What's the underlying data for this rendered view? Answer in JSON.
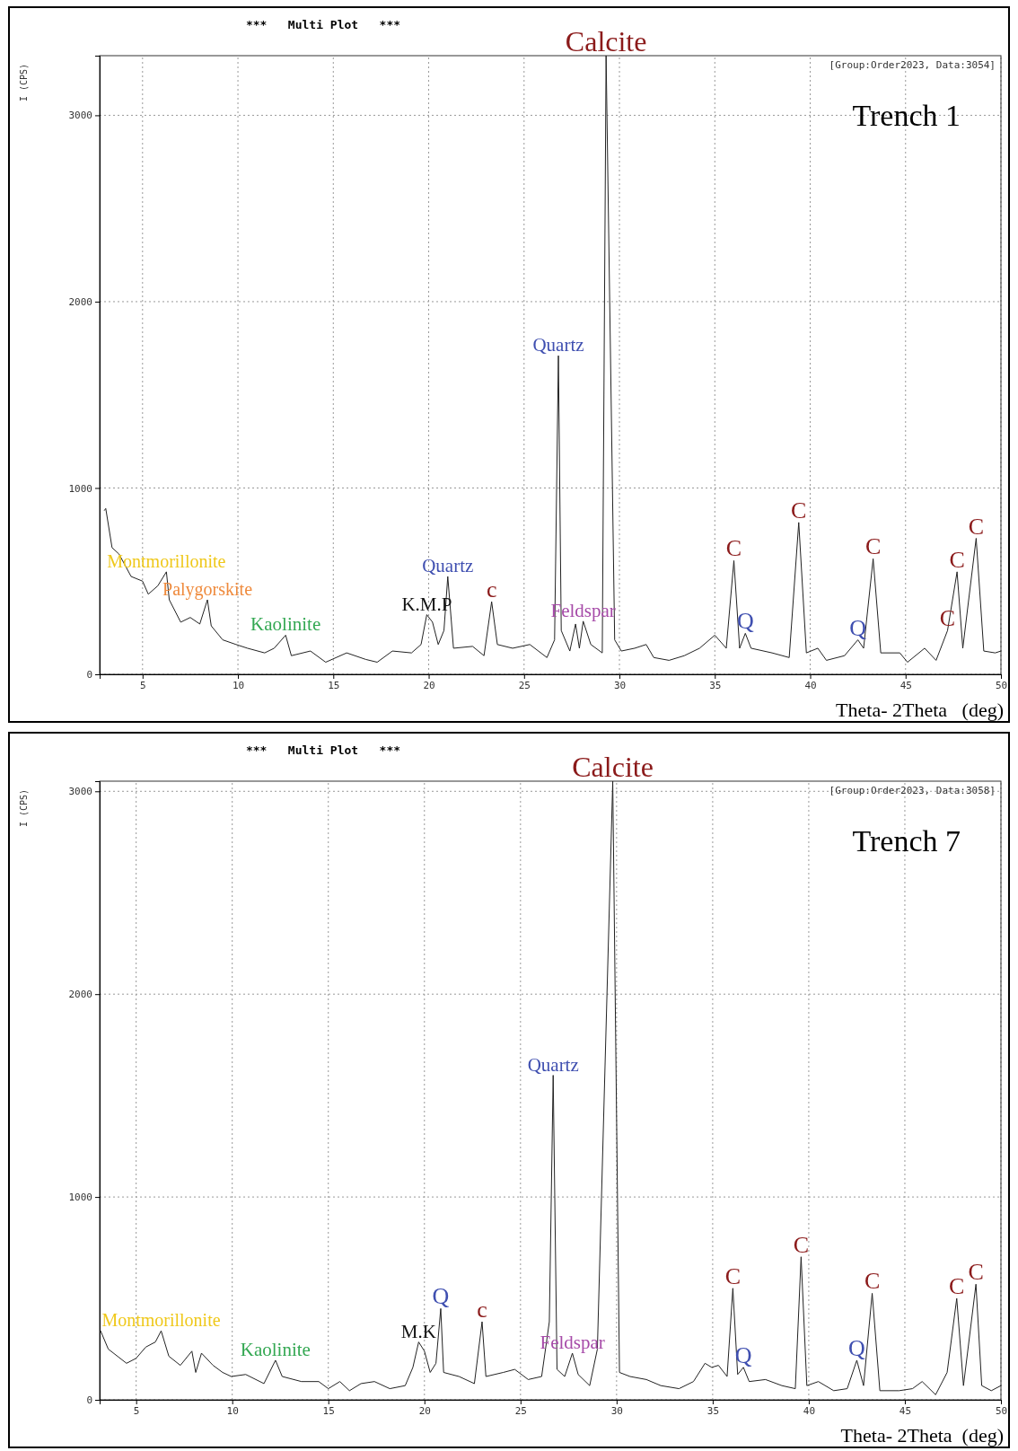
{
  "chart_data": [
    {
      "type": "line",
      "title": "***   Multi Plot   ***",
      "xlabel": "Theta- 2Theta   (deg)",
      "ylabel": "I (CPS)",
      "xlim": [
        2.75,
        50
      ],
      "ylim": [
        0,
        3320
      ],
      "xticks": [
        5,
        10,
        15,
        20,
        25,
        30,
        35,
        40,
        45,
        50
      ],
      "yticks": [
        0,
        1000,
        2000,
        3000
      ],
      "grid": true,
      "color": "#222222",
      "x": [
        3.0,
        3.07,
        3.4,
        3.77,
        4.4,
        5.0,
        5.3,
        5.8,
        6.25,
        6.4,
        7.0,
        7.5,
        8.0,
        8.4,
        8.6,
        9.2,
        9.9,
        10.5,
        11.4,
        11.9,
        12.5,
        12.8,
        13.8,
        14.6,
        15.7,
        16.7,
        17.3,
        18.1,
        19.1,
        19.6,
        19.9,
        20.2,
        20.5,
        20.8,
        21.0,
        21.3,
        22.3,
        22.9,
        23.3,
        23.6,
        24.4,
        25.3,
        26.2,
        26.6,
        26.8,
        26.95,
        27.4,
        27.7,
        27.9,
        28.1,
        28.5,
        29.1,
        29.3,
        29.75,
        30.1,
        30.8,
        31.4,
        31.8,
        32.6,
        33.4,
        34.2,
        35.0,
        35.6,
        36.0,
        36.3,
        36.6,
        36.9,
        38.0,
        38.9,
        39.4,
        39.8,
        40.4,
        40.85,
        41.8,
        42.5,
        42.8,
        43.3,
        43.7,
        44.7,
        45.1,
        46.0,
        46.6,
        47.2,
        47.7,
        48.0,
        48.7,
        49.1,
        49.7,
        50
      ],
      "values": [
        880,
        890,
        680,
        645,
        525,
        500,
        430,
        475,
        550,
        400,
        280,
        305,
        270,
        400,
        260,
        185,
        160,
        140,
        115,
        140,
        210,
        100,
        125,
        65,
        115,
        80,
        65,
        125,
        115,
        160,
        320,
        280,
        160,
        235,
        525,
        140,
        150,
        100,
        390,
        160,
        140,
        160,
        90,
        185,
        1710,
        235,
        125,
        270,
        140,
        285,
        160,
        115,
        3320,
        185,
        125,
        140,
        160,
        90,
        75,
        100,
        140,
        210,
        140,
        610,
        140,
        220,
        140,
        115,
        90,
        815,
        115,
        140,
        75,
        100,
        185,
        140,
        620,
        115,
        115,
        65,
        140,
        75,
        235,
        550,
        140,
        730,
        125,
        115,
        125
      ],
      "annotations": [
        {
          "text": "Calcite",
          "x": 29.3,
          "y": 3320
        },
        {
          "text": "Quartz",
          "x": 26.8,
          "y": 1710
        },
        {
          "text": "Quartz",
          "x": 21.0,
          "y": 525
        },
        {
          "text": "c",
          "x": 23.3,
          "y": 390
        },
        {
          "text": "K.M.P",
          "x": 19.9,
          "y": 320
        },
        {
          "text": "Montmorillonite",
          "x": 6.25,
          "y": 550
        },
        {
          "text": "Palygorskite",
          "x": 8.4,
          "y": 400
        },
        {
          "text": "Kaolinite",
          "x": 12.5,
          "y": 210
        },
        {
          "text": "Feldspar",
          "x": 28.1,
          "y": 285
        },
        {
          "text": "C",
          "x": 36.0,
          "y": 610
        },
        {
          "text": "Q",
          "x": 36.6,
          "y": 220
        },
        {
          "text": "C",
          "x": 39.4,
          "y": 815
        },
        {
          "text": "Q",
          "x": 42.5,
          "y": 185
        },
        {
          "text": "C",
          "x": 43.3,
          "y": 620
        },
        {
          "text": "C",
          "x": 47.2,
          "y": 235
        },
        {
          "text": "C",
          "x": 47.7,
          "y": 550
        },
        {
          "text": "C",
          "x": 48.7,
          "y": 730
        },
        "[Group:Order2023, Data:3054]",
        "Trench 1"
      ]
    },
    {
      "type": "line",
      "title": "***   Multi Plot   ***",
      "xlabel": "Theta- 2Theta  (deg)",
      "ylabel": "I (CPS)",
      "xlim": [
        3.1,
        50
      ],
      "ylim": [
        0,
        3050
      ],
      "xticks": [
        5,
        10,
        15,
        20,
        25,
        30,
        35,
        40,
        45,
        50
      ],
      "yticks": [
        0,
        1000,
        2000,
        3000
      ],
      "grid": true,
      "color": "#222222",
      "x": [
        3.15,
        3.55,
        4.5,
        5.0,
        5.5,
        6.0,
        6.3,
        6.7,
        7.3,
        7.9,
        8.1,
        8.4,
        9.0,
        9.5,
        9.95,
        10.7,
        11.65,
        12.25,
        12.6,
        13.6,
        14.5,
        15.0,
        15.6,
        16.1,
        16.7,
        17.4,
        18.2,
        19.0,
        19.4,
        19.7,
        20.0,
        20.3,
        20.6,
        20.85,
        21.0,
        21.8,
        22.6,
        23.0,
        23.2,
        24.1,
        24.7,
        25.4,
        26.1,
        26.5,
        26.7,
        26.9,
        27.3,
        27.7,
        28.0,
        28.6,
        29.0,
        29.8,
        30.15,
        30.7,
        31.55,
        32.3,
        33.25,
        34.0,
        34.6,
        34.95,
        35.3,
        35.75,
        36.05,
        36.3,
        36.6,
        36.9,
        37.75,
        38.6,
        39.3,
        39.6,
        39.9,
        40.5,
        41.3,
        42.0,
        42.5,
        42.85,
        43.3,
        43.7,
        44.7,
        45.4,
        45.9,
        46.6,
        47.2,
        47.7,
        48.05,
        48.7,
        49.0,
        49.5,
        50.0
      ],
      "values": [
        340,
        250,
        180,
        205,
        260,
        285,
        340,
        215,
        170,
        240,
        135,
        230,
        170,
        135,
        115,
        125,
        80,
        195,
        115,
        90,
        90,
        55,
        90,
        45,
        80,
        90,
        55,
        70,
        160,
        285,
        240,
        135,
        180,
        450,
        135,
        115,
        80,
        385,
        115,
        135,
        150,
        100,
        115,
        385,
        1600,
        150,
        115,
        230,
        125,
        70,
        250,
        3050,
        135,
        115,
        100,
        70,
        55,
        90,
        180,
        160,
        170,
        115,
        550,
        125,
        160,
        90,
        100,
        70,
        55,
        705,
        70,
        90,
        45,
        55,
        195,
        70,
        525,
        45,
        45,
        55,
        90,
        25,
        135,
        500,
        70,
        570,
        70,
        45,
        70
      ],
      "annotations": [
        {
          "text": "Calcite",
          "x": 29.8,
          "y": 3050
        },
        {
          "text": "Quartz",
          "x": 26.7,
          "y": 1600
        },
        {
          "text": "Q",
          "x": 20.85,
          "y": 450
        },
        {
          "text": "c",
          "x": 23.0,
          "y": 385
        },
        {
          "text": "M.K",
          "x": 19.7,
          "y": 285
        },
        {
          "text": "Montmorillonite",
          "x": 6.3,
          "y": 340
        },
        {
          "text": "Kaolinite",
          "x": 12.25,
          "y": 195
        },
        {
          "text": "Feldspar",
          "x": 27.7,
          "y": 230
        },
        {
          "text": "C",
          "x": 36.05,
          "y": 550
        },
        {
          "text": "Q",
          "x": 36.6,
          "y": 160
        },
        {
          "text": "C",
          "x": 39.6,
          "y": 705
        },
        {
          "text": "Q",
          "x": 42.5,
          "y": 195
        },
        {
          "text": "C",
          "x": 43.3,
          "y": 525
        },
        {
          "text": "C",
          "x": 47.7,
          "y": 500
        },
        {
          "text": "C",
          "x": 48.7,
          "y": 570
        },
        "[Group:Order2023, Data:3058]",
        "Trench 7"
      ]
    }
  ]
}
